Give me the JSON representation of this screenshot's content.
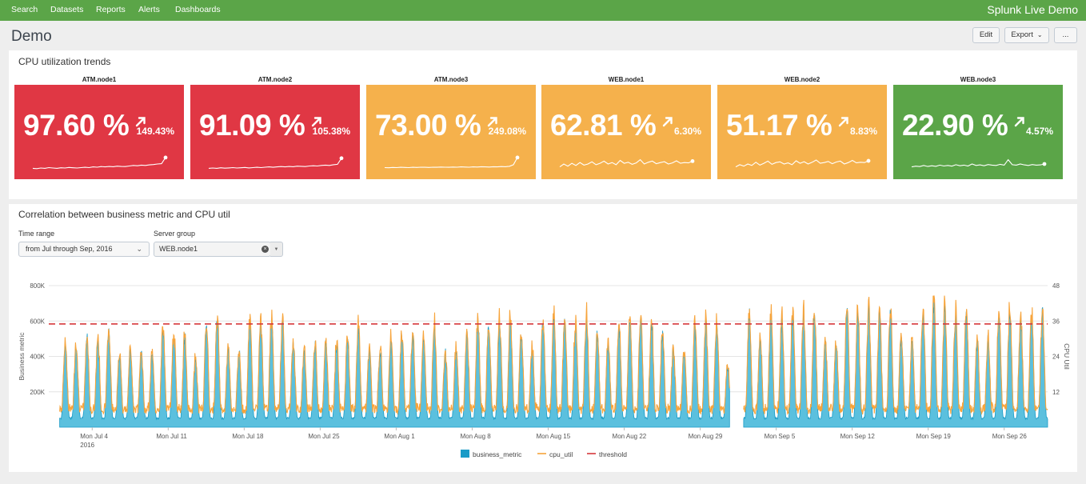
{
  "nav": {
    "items": [
      "Search",
      "Datasets",
      "Reports",
      "Alerts",
      "Dashboards"
    ],
    "brand": "Splunk Live Demo"
  },
  "page": {
    "title": "Demo",
    "edit_label": "Edit",
    "export_label": "Export",
    "more_label": "..."
  },
  "trends": {
    "title": "CPU utilization trends",
    "tiles": [
      {
        "name": "ATM.node1",
        "value": "97.60 %",
        "delta": "149.43%",
        "color": "#e03744",
        "spark": [
          0.2,
          0.18,
          0.22,
          0.2,
          0.25,
          0.22,
          0.2,
          0.24,
          0.22,
          0.26,
          0.24,
          0.22,
          0.25,
          0.27,
          0.25,
          0.3,
          0.28,
          0.32,
          0.3,
          0.33,
          0.31,
          0.35,
          0.33,
          0.32,
          0.36,
          0.4,
          0.38,
          0.42,
          0.4,
          0.44,
          0.46,
          0.5,
          0.52,
          0.95
        ]
      },
      {
        "name": "ATM.node2",
        "value": "91.09 %",
        "delta": "105.38%",
        "color": "#e03744",
        "spark": [
          0.2,
          0.22,
          0.2,
          0.24,
          0.21,
          0.23,
          0.25,
          0.22,
          0.24,
          0.26,
          0.23,
          0.25,
          0.27,
          0.25,
          0.28,
          0.3,
          0.27,
          0.3,
          0.32,
          0.3,
          0.33,
          0.31,
          0.35,
          0.34,
          0.32,
          0.36,
          0.38,
          0.36,
          0.4,
          0.42,
          0.4,
          0.45,
          0.48,
          0.9
        ]
      },
      {
        "name": "ATM.node3",
        "value": "73.00 %",
        "delta": "249.08%",
        "color": "#f5b14c",
        "spark": [
          0.25,
          0.24,
          0.26,
          0.25,
          0.27,
          0.26,
          0.25,
          0.27,
          0.26,
          0.28,
          0.27,
          0.26,
          0.28,
          0.27,
          0.29,
          0.28,
          0.27,
          0.29,
          0.28,
          0.3,
          0.29,
          0.28,
          0.3,
          0.29,
          0.31,
          0.3,
          0.29,
          0.31,
          0.3,
          0.32,
          0.31,
          0.34,
          0.45,
          0.95
        ]
      },
      {
        "name": "WEB.node1",
        "value": "62.81 %",
        "delta": "6.30%",
        "color": "#f5b14c",
        "spark": [
          0.3,
          0.5,
          0.35,
          0.55,
          0.4,
          0.6,
          0.42,
          0.5,
          0.65,
          0.45,
          0.55,
          0.7,
          0.5,
          0.6,
          0.45,
          0.75,
          0.55,
          0.62,
          0.48,
          0.58,
          0.8,
          0.5,
          0.62,
          0.7,
          0.52,
          0.6,
          0.66,
          0.5,
          0.58,
          0.72,
          0.55,
          0.6,
          0.58,
          0.7
        ]
      },
      {
        "name": "WEB.node2",
        "value": "51.17 %",
        "delta": "8.83%",
        "color": "#f5b14c",
        "spark": [
          0.3,
          0.45,
          0.35,
          0.5,
          0.4,
          0.62,
          0.42,
          0.55,
          0.7,
          0.48,
          0.6,
          0.65,
          0.5,
          0.58,
          0.45,
          0.72,
          0.55,
          0.66,
          0.5,
          0.62,
          0.78,
          0.55,
          0.6,
          0.68,
          0.52,
          0.64,
          0.7,
          0.5,
          0.6,
          0.75,
          0.58,
          0.62,
          0.6,
          0.72
        ]
      },
      {
        "name": "WEB.node3",
        "value": "22.90 %",
        "delta": "4.57%",
        "color": "#5ba548",
        "spark": [
          0.3,
          0.35,
          0.32,
          0.4,
          0.33,
          0.38,
          0.34,
          0.42,
          0.36,
          0.4,
          0.35,
          0.45,
          0.38,
          0.42,
          0.36,
          0.5,
          0.4,
          0.44,
          0.38,
          0.46,
          0.42,
          0.4,
          0.48,
          0.42,
          0.8,
          0.45,
          0.42,
          0.5,
          0.44,
          0.4,
          0.46,
          0.42,
          0.44,
          0.5
        ]
      }
    ]
  },
  "correlation": {
    "title": "Correlation between business metric and CPU util",
    "time_range_label": "Time range",
    "time_range_value": "from Jul through Sep, 2016",
    "server_group_label": "Server group",
    "server_group_value": "WEB.node1"
  },
  "chart_data": {
    "type": "area",
    "xlabel": "",
    "ylabel": "Business metric",
    "y2label": "CPU Util",
    "x_ticks": [
      "Mon Jul 4",
      "Mon Jul 11",
      "Mon Jul 18",
      "Mon Jul 25",
      "Mon Aug 1",
      "Mon Aug 8",
      "Mon Aug 15",
      "Mon Aug 22",
      "Mon Aug 29",
      "Mon Sep 5",
      "Mon Sep 12",
      "Mon Sep 19",
      "Mon Sep 26"
    ],
    "x_tick_year": "2016",
    "y_ticks": [
      "200K",
      "400K",
      "600K",
      "800K"
    ],
    "y2_ticks": [
      "12",
      "24",
      "36",
      "48"
    ],
    "ylim": [
      0,
      800000
    ],
    "y2lim": [
      0,
      48
    ],
    "threshold": 35,
    "legend_position": "bottom",
    "legend": [
      "business_metric",
      "cpu_util",
      "threshold"
    ],
    "series_colors": {
      "business_metric": "#1a9bc7",
      "business_metric_fill": "#5bc0de",
      "cpu_util": "#f7a43b",
      "threshold": "#d6393c"
    },
    "x_range": [
      "2016-06-30",
      "2016-09-30"
    ],
    "gap": [
      "2016-08-31",
      "2016-09-01"
    ],
    "daily_peak_business": [
      [
        "2016-07-01",
        480000
      ],
      [
        "2016-07-02",
        470000
      ],
      [
        "2016-07-03",
        500000
      ],
      [
        "2016-07-04",
        490000
      ],
      [
        "2016-07-05",
        560000
      ],
      [
        "2016-07-06",
        420000
      ],
      [
        "2016-07-07",
        430000
      ],
      [
        "2016-07-08",
        420000
      ],
      [
        "2016-07-09",
        410000
      ],
      [
        "2016-07-10",
        550000
      ],
      [
        "2016-07-11",
        530000
      ],
      [
        "2016-07-12",
        500000
      ],
      [
        "2016-07-13",
        380000
      ],
      [
        "2016-07-14",
        560000
      ],
      [
        "2016-07-15",
        610000
      ],
      [
        "2016-07-16",
        440000
      ],
      [
        "2016-07-17",
        430000
      ],
      [
        "2016-07-18",
        600000
      ],
      [
        "2016-07-19",
        590000
      ],
      [
        "2016-07-20",
        610000
      ],
      [
        "2016-07-21",
        600000
      ],
      [
        "2016-07-22",
        480000
      ],
      [
        "2016-07-23",
        430000
      ],
      [
        "2016-07-24",
        470000
      ],
      [
        "2016-07-25",
        480000
      ],
      [
        "2016-07-26",
        470000
      ],
      [
        "2016-07-27",
        500000
      ],
      [
        "2016-07-28",
        560000
      ],
      [
        "2016-07-29",
        430000
      ],
      [
        "2016-07-30",
        430000
      ],
      [
        "2016-07-31",
        490000
      ],
      [
        "2016-08-01",
        530000
      ],
      [
        "2016-08-02",
        520000
      ],
      [
        "2016-08-03",
        500000
      ],
      [
        "2016-08-04",
        570000
      ],
      [
        "2016-08-05",
        420000
      ],
      [
        "2016-08-06",
        440000
      ],
      [
        "2016-08-07",
        520000
      ],
      [
        "2016-08-08",
        600000
      ],
      [
        "2016-08-09",
        560000
      ],
      [
        "2016-08-10",
        600000
      ],
      [
        "2016-08-11",
        610000
      ],
      [
        "2016-08-12",
        520000
      ],
      [
        "2016-08-13",
        440000
      ],
      [
        "2016-08-14",
        600000
      ],
      [
        "2016-08-15",
        620000
      ],
      [
        "2016-08-16",
        610000
      ],
      [
        "2016-08-17",
        590000
      ],
      [
        "2016-08-18",
        620000
      ],
      [
        "2016-08-19",
        520000
      ],
      [
        "2016-08-20",
        480000
      ],
      [
        "2016-08-21",
        570000
      ],
      [
        "2016-08-22",
        610000
      ],
      [
        "2016-08-23",
        600000
      ],
      [
        "2016-08-24",
        580000
      ],
      [
        "2016-08-25",
        530000
      ],
      [
        "2016-08-26",
        440000
      ],
      [
        "2016-08-27",
        430000
      ],
      [
        "2016-08-28",
        570000
      ],
      [
        "2016-08-29",
        590000
      ],
      [
        "2016-08-30",
        580000
      ],
      [
        "2016-08-31",
        340000
      ],
      [
        "2016-09-02",
        640000
      ],
      [
        "2016-09-03",
        500000
      ],
      [
        "2016-09-04",
        640000
      ],
      [
        "2016-09-05",
        600000
      ],
      [
        "2016-09-06",
        620000
      ],
      [
        "2016-09-07",
        640000
      ],
      [
        "2016-09-08",
        640000
      ],
      [
        "2016-09-09",
        470000
      ],
      [
        "2016-09-10",
        480000
      ],
      [
        "2016-09-11",
        640000
      ],
      [
        "2016-09-12",
        650000
      ],
      [
        "2016-09-13",
        660000
      ],
      [
        "2016-09-14",
        640000
      ],
      [
        "2016-09-15",
        650000
      ],
      [
        "2016-09-16",
        520000
      ],
      [
        "2016-09-17",
        470000
      ],
      [
        "2016-09-18",
        660000
      ],
      [
        "2016-09-19",
        700000
      ],
      [
        "2016-09-20",
        650000
      ],
      [
        "2016-09-21",
        630000
      ],
      [
        "2016-09-22",
        640000
      ],
      [
        "2016-09-23",
        480000
      ],
      [
        "2016-09-24",
        490000
      ],
      [
        "2016-09-25",
        630000
      ],
      [
        "2016-09-26",
        650000
      ],
      [
        "2016-09-27",
        610000
      ],
      [
        "2016-09-28",
        630000
      ],
      [
        "2016-09-29",
        640000
      ],
      [
        "2016-09-30",
        500000
      ]
    ]
  }
}
